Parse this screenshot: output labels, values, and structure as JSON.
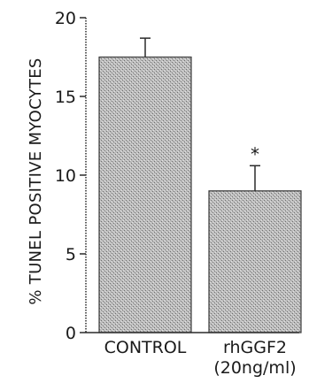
{
  "chart_data": {
    "type": "bar",
    "title": "",
    "xlabel": "",
    "ylabel": "% TUNEL POSITIVE MYOCYTES",
    "ylim": [
      0,
      20
    ],
    "yticks": [
      "0",
      "5",
      "10",
      "15",
      "20"
    ],
    "categories": [
      {
        "line1": "CONTROL",
        "line2": ""
      },
      {
        "line1": "rhGGF2",
        "line2": "(20ng/ml)"
      }
    ],
    "values": [
      17.5,
      9.0
    ],
    "errors": [
      1.2,
      1.6
    ],
    "annotations": [
      "",
      "*"
    ],
    "grid": false,
    "legend": "none",
    "colors": {
      "bar_fill": "#b4b4b4",
      "bar_stroke": "#3a3a3a",
      "axis": "#2a2a2a",
      "text": "#1a1a1a"
    }
  }
}
